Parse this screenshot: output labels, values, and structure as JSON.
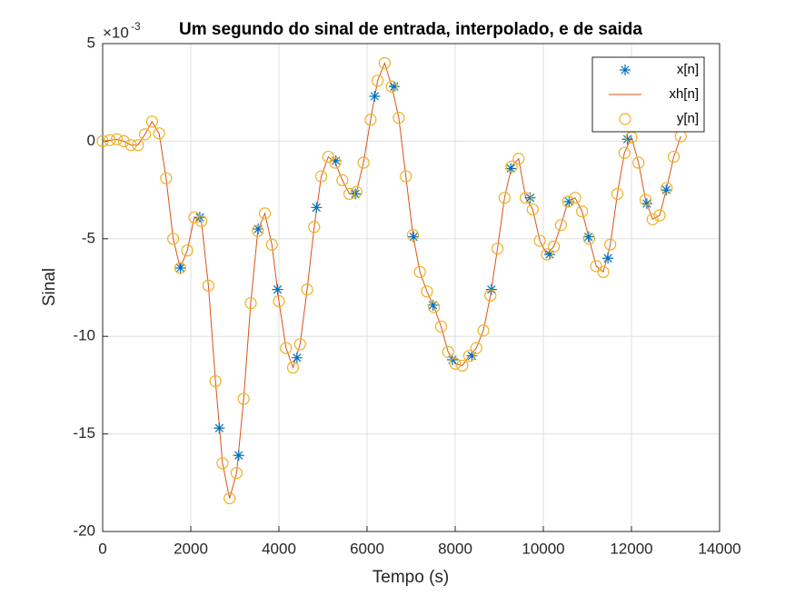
{
  "chart_data": {
    "type": "line",
    "title": "Um segundo do sinal de entrada, interpolado, e de saida",
    "xlabel": "Tempo (s)",
    "ylabel": "Sinal",
    "y_exponent": "×10",
    "y_exponent_power": "-3",
    "xlim": [
      0,
      14000
    ],
    "xticks": [
      0,
      2000,
      4000,
      6000,
      8000,
      10000,
      12000,
      14000
    ],
    "ylim": [
      -20,
      5
    ],
    "yticks": [
      -20,
      -15,
      -10,
      -5,
      0,
      5
    ],
    "grid": true,
    "legend": "northeast",
    "series": [
      {
        "name": "x[n]",
        "color": "#0072BD",
        "style": "star",
        "x": [
          1764,
          2205,
          2646,
          3087,
          3528,
          3969,
          4410,
          4851,
          5292,
          5733,
          6174,
          6615,
          7056,
          7497,
          7938,
          8379,
          8820,
          9261,
          9702,
          10143,
          10584,
          11025,
          11466,
          11907,
          12348,
          12789
        ],
        "values": [
          -6.5,
          -3.9,
          -14.7,
          -16.1,
          -4.5,
          -7.6,
          -11.1,
          -3.4,
          -1.0,
          -2.7,
          2.3,
          2.8,
          -4.9,
          -8.4,
          -11.2,
          -11.0,
          -7.6,
          -1.4,
          -2.9,
          -5.8,
          -3.1,
          -4.9,
          -6.0,
          0.1,
          -3.2,
          -2.5
        ]
      },
      {
        "name": "xh[n]",
        "color": "#D95319",
        "style": "line",
        "x": [
          0,
          160,
          320,
          480,
          640,
          800,
          960,
          1120,
          1280,
          1440,
          1600,
          1760,
          1920,
          2080,
          2240,
          2400,
          2560,
          2720,
          2880,
          3040,
          3200,
          3360,
          3520,
          3680,
          3840,
          4000,
          4160,
          4320,
          4480,
          4640,
          4800,
          4960,
          5120,
          5280,
          5440,
          5600,
          5760,
          5920,
          6080,
          6240,
          6400,
          6560,
          6720,
          6880,
          7040,
          7200,
          7360,
          7520,
          7680,
          7840,
          8000,
          8160,
          8320,
          8480,
          8640,
          8800,
          8960,
          9120,
          9280,
          9440,
          9600,
          9760,
          9920,
          10080,
          10240,
          10400,
          10560,
          10720,
          10880,
          11040,
          11200,
          11360,
          11520,
          11680,
          11840,
          12000,
          12160,
          12320,
          12480,
          12640,
          12800,
          12960,
          13120
        ],
        "values": [
          0,
          0.05,
          0.1,
          0,
          -0.2,
          -0.2,
          0.35,
          1.0,
          0.4,
          -1.9,
          -5.0,
          -6.5,
          -5.6,
          -3.9,
          -4.1,
          -7.4,
          -12.3,
          -16.5,
          -18.3,
          -17.0,
          -13.2,
          -8.3,
          -4.6,
          -3.7,
          -5.3,
          -8.2,
          -10.6,
          -11.6,
          -10.4,
          -7.6,
          -4.4,
          -1.8,
          -0.8,
          -1.1,
          -2.0,
          -2.7,
          -2.6,
          -1.1,
          1.1,
          3.1,
          4.0,
          2.8,
          1.2,
          -1.8,
          -4.8,
          -6.7,
          -7.7,
          -8.5,
          -9.5,
          -10.8,
          -11.4,
          -11.5,
          -11.0,
          -10.6,
          -9.7,
          -7.9,
          -5.5,
          -2.9,
          -1.3,
          -0.9,
          -2.9,
          -3.5,
          -5.1,
          -5.8,
          -5.4,
          -4.3,
          -3.1,
          -2.9,
          -3.6,
          -5.0,
          -6.4,
          -6.7,
          -5.3,
          -2.7,
          -0.6,
          0.2,
          -1.1,
          -3.0,
          -4.0,
          -3.8,
          -2.4,
          -0.8,
          0.25
        ]
      },
      {
        "name": "y[n]",
        "color": "#EDB120",
        "style": "circle",
        "x": [
          0,
          160,
          320,
          480,
          640,
          800,
          960,
          1120,
          1280,
          1440,
          1600,
          1760,
          1920,
          2080,
          2240,
          2400,
          2560,
          2720,
          2880,
          3040,
          3200,
          3360,
          3520,
          3680,
          3840,
          4000,
          4160,
          4320,
          4480,
          4640,
          4800,
          4960,
          5120,
          5280,
          5440,
          5600,
          5760,
          5920,
          6080,
          6240,
          6400,
          6560,
          6720,
          6880,
          7040,
          7200,
          7360,
          7520,
          7680,
          7840,
          8000,
          8160,
          8320,
          8480,
          8640,
          8800,
          8960,
          9120,
          9280,
          9440,
          9600,
          9760,
          9920,
          10080,
          10240,
          10400,
          10560,
          10720,
          10880,
          11040,
          11200,
          11360,
          11520,
          11680,
          11840,
          12000,
          12160,
          12320,
          12480,
          12640,
          12800,
          12960,
          13120
        ],
        "values": [
          0,
          0.05,
          0.1,
          0,
          -0.2,
          -0.2,
          0.35,
          1.0,
          0.4,
          -1.9,
          -5.0,
          -6.5,
          -5.6,
          -3.9,
          -4.1,
          -7.4,
          -12.3,
          -16.5,
          -18.3,
          -17.0,
          -13.2,
          -8.3,
          -4.6,
          -3.7,
          -5.3,
          -8.2,
          -10.6,
          -11.6,
          -10.4,
          -7.6,
          -4.4,
          -1.8,
          -0.8,
          -1.1,
          -2.0,
          -2.7,
          -2.6,
          -1.1,
          1.1,
          3.1,
          4.0,
          2.8,
          1.2,
          -1.8,
          -4.8,
          -6.7,
          -7.7,
          -8.5,
          -9.5,
          -10.8,
          -11.4,
          -11.5,
          -11.0,
          -10.6,
          -9.7,
          -7.9,
          -5.5,
          -2.9,
          -1.3,
          -0.9,
          -2.9,
          -3.5,
          -5.1,
          -5.8,
          -5.4,
          -4.3,
          -3.1,
          -2.9,
          -3.6,
          -5.0,
          -6.4,
          -6.7,
          -5.3,
          -2.7,
          -0.6,
          0.2,
          -1.1,
          -3.0,
          -4.0,
          -3.8,
          -2.4,
          -0.8,
          0.25
        ]
      }
    ]
  }
}
